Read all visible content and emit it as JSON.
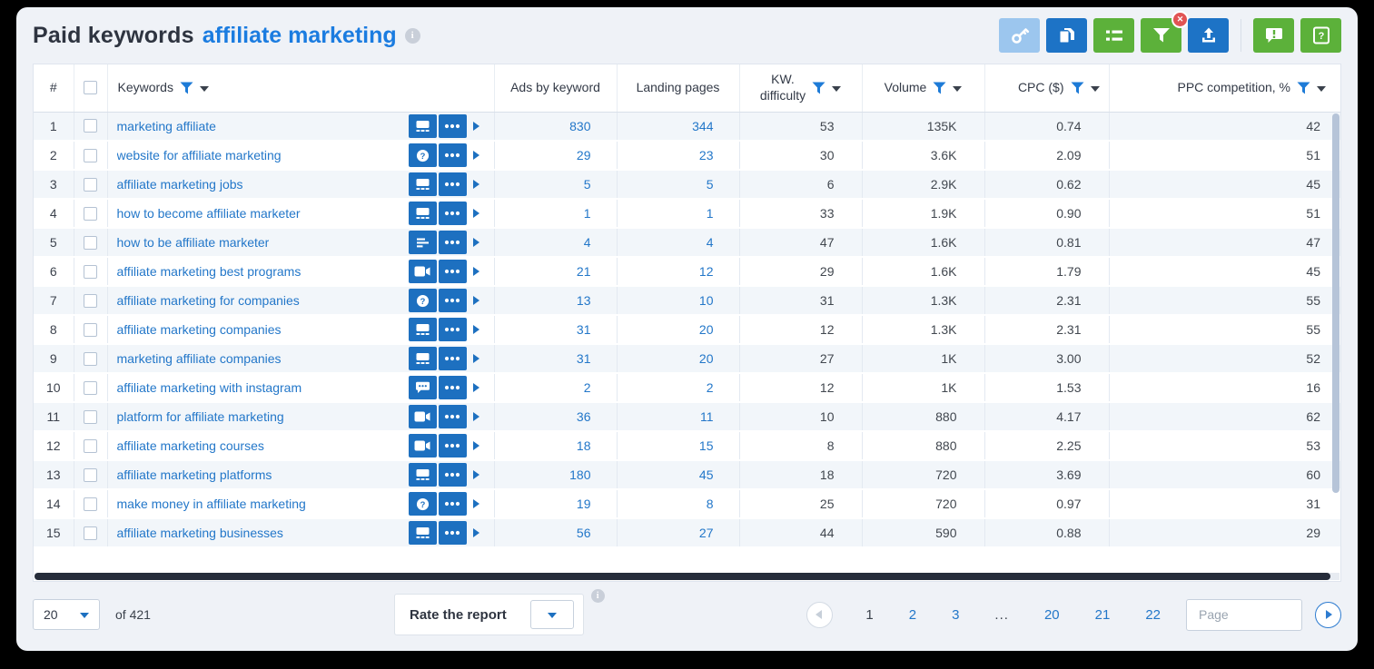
{
  "header": {
    "title": "Paid keywords",
    "query": "affiliate marketing",
    "info_glyph": "i",
    "toolbar": [
      {
        "name": "keyword-research",
        "icon": "key",
        "style": "lightblue"
      },
      {
        "name": "copy-report",
        "icon": "copy",
        "style": "blue"
      },
      {
        "name": "list-view",
        "icon": "list",
        "style": "green"
      },
      {
        "name": "filter",
        "icon": "funnel",
        "style": "green",
        "badge": "✕"
      },
      {
        "name": "export",
        "icon": "export",
        "style": "blue"
      },
      {
        "type": "divider"
      },
      {
        "name": "feedback",
        "icon": "feedback",
        "style": "green"
      },
      {
        "name": "help",
        "icon": "help",
        "style": "green"
      }
    ]
  },
  "table": {
    "columns": [
      {
        "label": "#"
      },
      {
        "label": ""
      },
      {
        "label": "Keywords",
        "filter": true
      },
      {
        "label": "Ads by keyword"
      },
      {
        "label": "Landing pages"
      },
      {
        "label": "KW.\ndifficulty",
        "filter": true
      },
      {
        "label": "Volume",
        "filter": true
      },
      {
        "label": "CPC ($)",
        "filter": true
      },
      {
        "label": "PPC competition, %",
        "filter": true
      }
    ],
    "rows": [
      {
        "num": "1",
        "keyword": "marketing affiliate",
        "serp_icon": "display",
        "ads": "830",
        "landing": "344",
        "kd": "53",
        "volume": "135K",
        "cpc": "0.74",
        "ppc": "42"
      },
      {
        "num": "2",
        "keyword": "website for affiliate marketing",
        "serp_icon": "question",
        "ads": "29",
        "landing": "23",
        "kd": "30",
        "volume": "3.6K",
        "cpc": "2.09",
        "ppc": "51"
      },
      {
        "num": "3",
        "keyword": "affiliate marketing jobs",
        "serp_icon": "display",
        "ads": "5",
        "landing": "5",
        "kd": "6",
        "volume": "2.9K",
        "cpc": "0.62",
        "ppc": "45"
      },
      {
        "num": "4",
        "keyword": "how to become affiliate marketer",
        "serp_icon": "display",
        "ads": "1",
        "landing": "1",
        "kd": "33",
        "volume": "1.9K",
        "cpc": "0.90",
        "ppc": "51"
      },
      {
        "num": "5",
        "keyword": "how to be affiliate marketer",
        "serp_icon": "snippet",
        "ads": "4",
        "landing": "4",
        "kd": "47",
        "volume": "1.6K",
        "cpc": "0.81",
        "ppc": "47"
      },
      {
        "num": "6",
        "keyword": "affiliate marketing best programs",
        "serp_icon": "video",
        "ads": "21",
        "landing": "12",
        "kd": "29",
        "volume": "1.6K",
        "cpc": "1.79",
        "ppc": "45"
      },
      {
        "num": "7",
        "keyword": "affiliate marketing for companies",
        "serp_icon": "question",
        "ads": "13",
        "landing": "10",
        "kd": "31",
        "volume": "1.3K",
        "cpc": "2.31",
        "ppc": "55"
      },
      {
        "num": "8",
        "keyword": "affiliate marketing companies",
        "serp_icon": "display",
        "ads": "31",
        "landing": "20",
        "kd": "12",
        "volume": "1.3K",
        "cpc": "2.31",
        "ppc": "55"
      },
      {
        "num": "9",
        "keyword": "marketing affiliate companies",
        "serp_icon": "display",
        "ads": "31",
        "landing": "20",
        "kd": "27",
        "volume": "1K",
        "cpc": "3.00",
        "ppc": "52"
      },
      {
        "num": "10",
        "keyword": "affiliate marketing with instagram",
        "serp_icon": "chat",
        "ads": "2",
        "landing": "2",
        "kd": "12",
        "volume": "1K",
        "cpc": "1.53",
        "ppc": "16"
      },
      {
        "num": "11",
        "keyword": "platform for affiliate marketing",
        "serp_icon": "video",
        "ads": "36",
        "landing": "11",
        "kd": "10",
        "volume": "880",
        "cpc": "4.17",
        "ppc": "62"
      },
      {
        "num": "12",
        "keyword": "affiliate marketing courses",
        "serp_icon": "video",
        "ads": "18",
        "landing": "15",
        "kd": "8",
        "volume": "880",
        "cpc": "2.25",
        "ppc": "53"
      },
      {
        "num": "13",
        "keyword": "affiliate marketing platforms",
        "serp_icon": "display",
        "ads": "180",
        "landing": "45",
        "kd": "18",
        "volume": "720",
        "cpc": "3.69",
        "ppc": "60"
      },
      {
        "num": "14",
        "keyword": "make money in affiliate marketing",
        "serp_icon": "question",
        "ads": "19",
        "landing": "8",
        "kd": "25",
        "volume": "720",
        "cpc": "0.97",
        "ppc": "31"
      },
      {
        "num": "15",
        "keyword": "affiliate marketing businesses",
        "serp_icon": "display",
        "ads": "56",
        "landing": "27",
        "kd": "44",
        "volume": "590",
        "cpc": "0.88",
        "ppc": "29"
      }
    ]
  },
  "footer": {
    "page_size": "20",
    "total": "of 421",
    "rate_label": "Rate the report",
    "rate_info_glyph": "i",
    "pagination": {
      "current": "1",
      "ellipsis": "...",
      "pages": [
        "1",
        "2",
        "3",
        "...",
        "20",
        "21",
        "22"
      ],
      "page_placeholder": "Page"
    }
  }
}
